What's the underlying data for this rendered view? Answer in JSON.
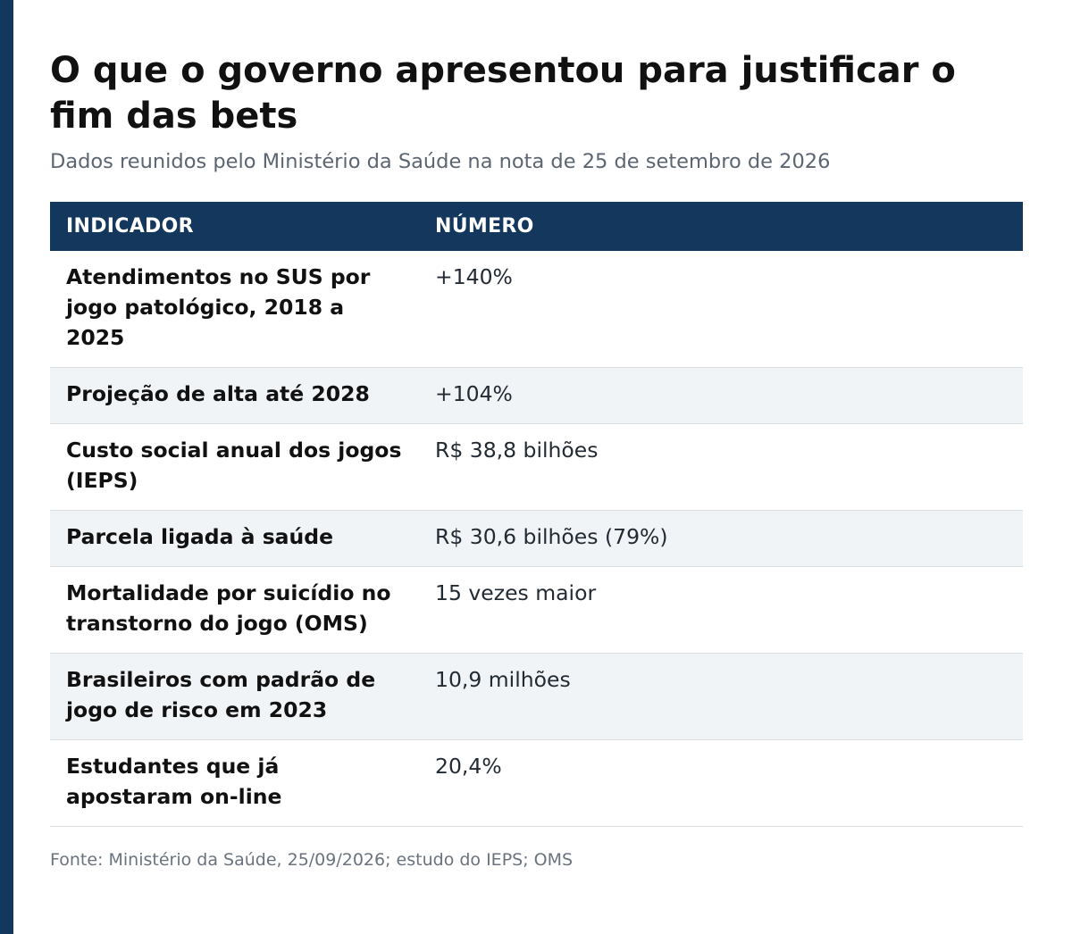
{
  "title": "O que o governo apresentou para justificar o fim das bets",
  "subtitle": "Dados reunidos pelo Ministério da Saúde na nota de 25 de setembro de 2026",
  "table": {
    "headers": [
      "INDICADOR",
      "NÚMERO"
    ],
    "rows": [
      {
        "indicator": "Atendimentos no SUS por jogo patológico, 2018 a 2025",
        "value": "+140%"
      },
      {
        "indicator": "Projeção de alta até 2028",
        "value": "+104%"
      },
      {
        "indicator": "Custo social anual dos jogos (IEPS)",
        "value": "R$ 38,8 bilhões"
      },
      {
        "indicator": "Parcela ligada à saúde",
        "value": "R$ 30,6 bilhões (79%)"
      },
      {
        "indicator": "Mortalidade por suicídio no transtorno do jogo (OMS)",
        "value": "15 vezes maior"
      },
      {
        "indicator": "Brasileiros com padrão de jogo de risco em 2023",
        "value": "10,9 milhões"
      },
      {
        "indicator": "Estudantes que já apostaram on-line",
        "value": "20,4%"
      }
    ]
  },
  "source": "Fonte: Ministério da Saúde, 25/09/2026; estudo do IEPS; OMS",
  "colors": {
    "accent": "#14375d",
    "alt_row": "#f0f4f7"
  }
}
